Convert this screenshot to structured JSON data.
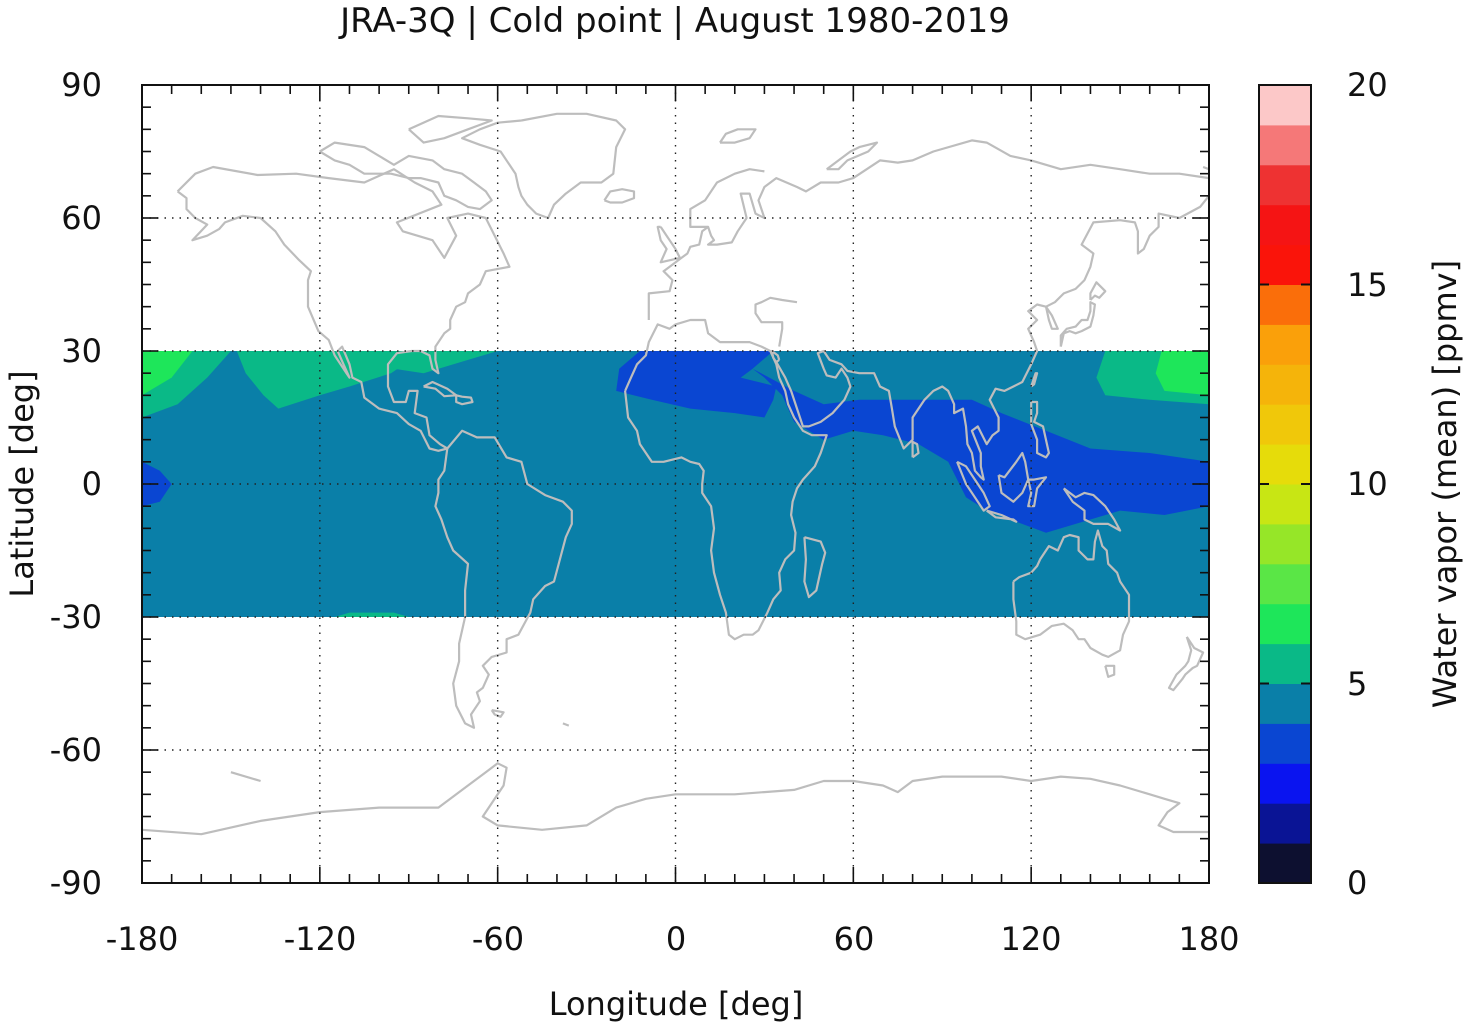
{
  "chart_data": {
    "type": "heatmap",
    "title": "JRA-3Q | Cold point | August 1980-2019",
    "xlabel": "Longitude [deg]",
    "ylabel": "Latitude [deg]",
    "colorbar_label": "Water vapor (mean) [ppmv]",
    "xlim": [
      -180,
      180
    ],
    "ylim": [
      -90,
      90
    ],
    "data_lat_range": [
      -30,
      30
    ],
    "x_ticks": [
      "-180",
      "-120",
      "-60",
      "0",
      "60",
      "120",
      "180"
    ],
    "y_ticks": [
      "90",
      "60",
      "30",
      "0",
      "-30",
      "-60",
      "-90"
    ],
    "colorbar_ticks": [
      "20",
      "15",
      "10",
      "5",
      "0"
    ],
    "colorbar_range": [
      0,
      20
    ],
    "grid": true,
    "colorbar_levels": [
      {
        "from": 0,
        "to": 1,
        "color": "#0d1030"
      },
      {
        "from": 1,
        "to": 2,
        "color": "#0a1495"
      },
      {
        "from": 2,
        "to": 3,
        "color": "#0a14f0"
      },
      {
        "from": 3,
        "to": 4,
        "color": "#0a46d2"
      },
      {
        "from": 4,
        "to": 5,
        "color": "#0a7fa8"
      },
      {
        "from": 5,
        "to": 6,
        "color": "#0ab987"
      },
      {
        "from": 6,
        "to": 7,
        "color": "#1ee65a"
      },
      {
        "from": 7,
        "to": 8,
        "color": "#5ae646"
      },
      {
        "from": 8,
        "to": 9,
        "color": "#96e628"
      },
      {
        "from": 9,
        "to": 10,
        "color": "#c8e614"
      },
      {
        "from": 10,
        "to": 11,
        "color": "#e6dc0a"
      },
      {
        "from": 11,
        "to": 12,
        "color": "#f0c80a"
      },
      {
        "from": 12,
        "to": 13,
        "color": "#f5b40a"
      },
      {
        "from": 13,
        "to": 14,
        "color": "#faa00a"
      },
      {
        "from": 14,
        "to": 15,
        "color": "#fa6e0a"
      },
      {
        "from": 15,
        "to": 16,
        "color": "#fa140a"
      },
      {
        "from": 16,
        "to": 17,
        "color": "#f51414"
      },
      {
        "from": 17,
        "to": 18,
        "color": "#ee3232"
      },
      {
        "from": 18,
        "to": 19,
        "color": "#f57878"
      },
      {
        "from": 19,
        "to": 20,
        "color": "#fcc8c8"
      }
    ],
    "background_level_color": "#0a7fa8",
    "regions": [
      {
        "value_level": "5-6",
        "color": "#0ab987",
        "lon_range": [
          -180,
          -150
        ],
        "lat_range": [
          15,
          30
        ]
      },
      {
        "value_level": "6-7",
        "color": "#1ee65a",
        "lon_range": [
          -180,
          -165
        ],
        "lat_range": [
          20,
          30
        ]
      },
      {
        "value_level": "5-6",
        "color": "#0ab987",
        "lon_range": [
          -150,
          -85
        ],
        "lat_range": [
          15,
          30
        ]
      },
      {
        "value_level": "5-6",
        "color": "#0ab987",
        "lon_range": [
          -100,
          -60
        ],
        "lat_range": [
          24,
          30
        ]
      },
      {
        "value_level": "5-6",
        "color": "#0ab987",
        "lon_range": [
          -115,
          -90
        ],
        "lat_range": [
          -30,
          -29
        ]
      },
      {
        "value_level": "3-4",
        "color": "#0a46d2",
        "lon_range": [
          -20,
          35
        ],
        "lat_range": [
          15,
          30
        ]
      },
      {
        "value_level": "3-4",
        "color": "#0a46d2",
        "lon_range": [
          35,
          180
        ],
        "lat_range": [
          -12,
          20
        ]
      },
      {
        "value_level": "3-4",
        "color": "#0a46d2",
        "lon_range": [
          -180,
          -170
        ],
        "lat_range": [
          -5,
          5
        ]
      },
      {
        "value_level": "5-6",
        "color": "#0ab987",
        "lon_range": [
          140,
          180
        ],
        "lat_range": [
          18,
          30
        ]
      },
      {
        "value_level": "6-7",
        "color": "#1ee65a",
        "lon_range": [
          160,
          180
        ],
        "lat_range": [
          20,
          30
        ]
      }
    ],
    "coastline_color": "#bdbdbd"
  }
}
